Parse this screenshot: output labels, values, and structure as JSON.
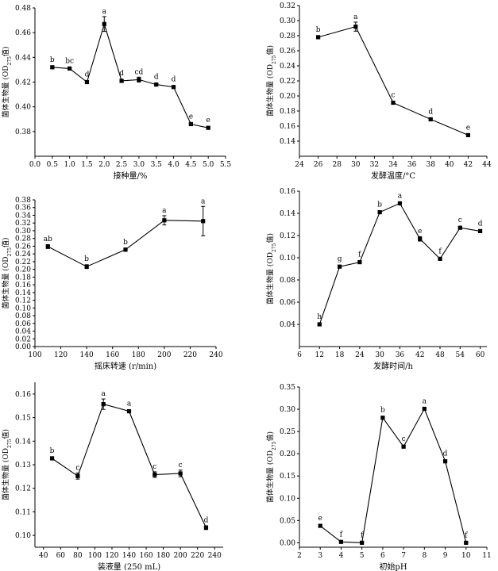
{
  "chart_data": [
    {
      "type": "line",
      "xlabel": "接种量/%",
      "ylabel": "菌体生物量 (OD",
      "ylabel_sub": "275",
      "ylabel_suffix": "值)",
      "xlim": [
        0.0,
        5.5
      ],
      "ylim": [
        0.36,
        0.48
      ],
      "xticks": [
        0.0,
        0.5,
        1.0,
        1.5,
        2.0,
        2.5,
        3.0,
        3.5,
        4.0,
        4.5,
        5.0,
        5.5
      ],
      "yticks": [
        0.38,
        0.4,
        0.42,
        0.44,
        0.46,
        0.48
      ],
      "x_decimals": 1,
      "y_decimals": 2,
      "x": [
        0.5,
        1.0,
        1.5,
        2.0,
        2.5,
        3.0,
        3.5,
        4.0,
        4.5,
        5.0
      ],
      "y": [
        0.432,
        0.431,
        0.42,
        0.467,
        0.421,
        0.422,
        0.418,
        0.416,
        0.386,
        0.383
      ],
      "err": [
        0.001,
        0.001,
        0.001,
        0.006,
        0.001,
        0.002,
        0.001,
        0.001,
        0.001,
        0.001
      ],
      "letters": [
        "b",
        "bc",
        "d",
        "a",
        "d",
        "cd",
        "d",
        "d",
        "e",
        "e"
      ]
    },
    {
      "type": "line",
      "xlabel": "发酵温度/°C",
      "ylabel": "菌体生物量 (OD",
      "ylabel_sub": "275",
      "ylabel_suffix": "值)",
      "xlim": [
        24,
        44
      ],
      "ylim": [
        0.12,
        0.32
      ],
      "xticks": [
        24,
        26,
        28,
        30,
        32,
        34,
        36,
        38,
        40,
        42,
        44
      ],
      "yticks": [
        0.14,
        0.16,
        0.18,
        0.2,
        0.22,
        0.24,
        0.26,
        0.28,
        0.3,
        0.32
      ],
      "x_decimals": 0,
      "y_decimals": 2,
      "x": [
        26,
        30,
        34,
        38,
        42
      ],
      "y": [
        0.278,
        0.292,
        0.191,
        0.169,
        0.148
      ],
      "err": [
        0.001,
        0.006,
        0.002,
        0.001,
        0.001
      ],
      "letters": [
        "b",
        "a",
        "c",
        "d",
        "e"
      ]
    },
    {
      "type": "line",
      "xlabel": "摇床转速 (r/min)",
      "ylabel": "菌体生物量 (OD",
      "ylabel_sub": "275",
      "ylabel_suffix": "值)",
      "xlim": [
        100,
        240
      ],
      "ylim": [
        0.0,
        0.38
      ],
      "xticks": [
        100,
        120,
        140,
        160,
        180,
        200,
        220,
        240
      ],
      "yticks": [
        0.0,
        0.02,
        0.04,
        0.06,
        0.08,
        0.1,
        0.12,
        0.14,
        0.16,
        0.18,
        0.2,
        0.22,
        0.24,
        0.26,
        0.28,
        0.3,
        0.32,
        0.34,
        0.36,
        0.38
      ],
      "x_decimals": 0,
      "y_decimals": 2,
      "x": [
        110,
        140,
        170,
        200,
        230
      ],
      "y": [
        0.259,
        0.207,
        0.251,
        0.327,
        0.325
      ],
      "err": [
        0.005,
        0.005,
        0.004,
        0.012,
        0.038
      ],
      "letters": [
        "ab",
        "b",
        "b",
        "a",
        "a"
      ]
    },
    {
      "type": "line",
      "xlabel": "发酵时间/h",
      "ylabel": "菌体生物量 (OD",
      "ylabel_sub": "275",
      "ylabel_suffix": "值)",
      "xlim": [
        6,
        62
      ],
      "ylim": [
        0.02,
        0.16
      ],
      "xticks": [
        6,
        12,
        18,
        24,
        30,
        36,
        42,
        48,
        54,
        60
      ],
      "yticks": [
        0.04,
        0.06,
        0.08,
        0.1,
        0.12,
        0.14,
        0.16
      ],
      "x_decimals": 0,
      "y_decimals": 2,
      "x": [
        12,
        18,
        24,
        30,
        36,
        42,
        48,
        54,
        60
      ],
      "y": [
        0.04,
        0.092,
        0.096,
        0.141,
        0.149,
        0.117,
        0.099,
        0.127,
        0.124
      ],
      "err": [
        0.001,
        0.001,
        0.001,
        0.001,
        0.001,
        0.002,
        0.001,
        0.001,
        0.001
      ],
      "letters": [
        "h",
        "g",
        "f",
        "b",
        "a",
        "e",
        "f",
        "c",
        "d"
      ]
    },
    {
      "type": "line",
      "xlabel": "装液量 (250 mL)",
      "ylabel": "菌体生物量 (OD",
      "ylabel_sub": "275",
      "ylabel_suffix": "值)",
      "xlim": [
        30,
        250
      ],
      "ylim": [
        0.095,
        0.165
      ],
      "xticks": [
        40,
        60,
        80,
        100,
        120,
        140,
        160,
        180,
        200,
        220,
        240
      ],
      "yticks": [
        0.1,
        0.11,
        0.12,
        0.13,
        0.14,
        0.15,
        0.16
      ],
      "x_decimals": 0,
      "y_decimals": 2,
      "x": [
        50,
        80,
        110,
        140,
        170,
        200,
        230
      ],
      "y": [
        0.1327,
        0.1252,
        0.1557,
        0.1527,
        0.1258,
        0.1263,
        0.1033
      ],
      "err": [
        0.0007,
        0.0013,
        0.0022,
        0.0006,
        0.0012,
        0.0014,
        0.0008
      ],
      "letters": [
        "b",
        "c",
        "a",
        "a",
        "c",
        "c",
        "d"
      ]
    },
    {
      "type": "line",
      "xlabel": "初始pH",
      "ylabel": "菌体生物量 (OD",
      "ylabel_sub": "275",
      "ylabel_suffix": "值)",
      "xlim": [
        2,
        11
      ],
      "ylim": [
        -0.01,
        0.35
      ],
      "xticks": [
        2,
        3,
        4,
        5,
        6,
        7,
        8,
        9,
        10,
        11
      ],
      "yticks": [
        0.0,
        0.05,
        0.1,
        0.15,
        0.2,
        0.25,
        0.3,
        0.35
      ],
      "x_decimals": 0,
      "y_decimals": 2,
      "x": [
        3,
        4,
        5,
        6,
        7,
        8,
        9,
        10
      ],
      "y": [
        0.038,
        0.002,
        0.0,
        0.281,
        0.216,
        0.301,
        0.183,
        0.0
      ],
      "err": [
        0.002,
        0.001,
        0.001,
        0.003,
        0.003,
        0.003,
        0.003,
        0.001
      ],
      "letters": [
        "e",
        "f",
        "f",
        "b",
        "c",
        "a",
        "d",
        "f"
      ]
    }
  ]
}
